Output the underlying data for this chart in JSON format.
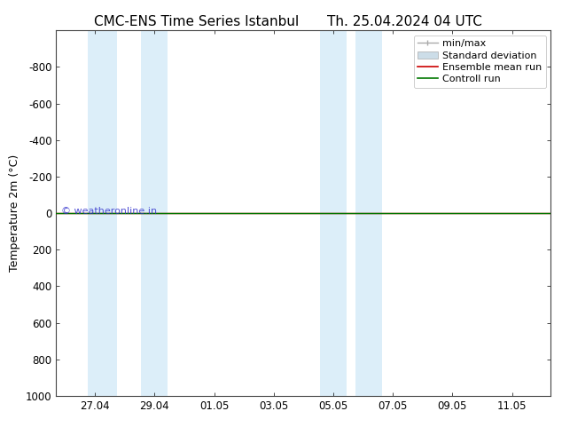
{
  "title_left": "CMC-ENS Time Series Istanbul",
  "title_right": "Th. 25.04.2024 04 UTC",
  "ylabel": "Temperature 2m (°C)",
  "watermark": "© weatheronline.in",
  "ylim_bottom": 1000,
  "ylim_top": -1000,
  "yticks": [
    -800,
    -600,
    -400,
    -200,
    0,
    200,
    400,
    600,
    800,
    1000
  ],
  "xtick_labels": [
    "27.04",
    "29.04",
    "01.05",
    "03.05",
    "05.05",
    "07.05",
    "09.05",
    "11.05"
  ],
  "xtick_positions": [
    0,
    2,
    4,
    6,
    8,
    10,
    12,
    14
  ],
  "xlim_left": -1.3,
  "xlim_right": 15.3,
  "shade_color": "#dceef9",
  "shaded_bands": [
    [
      -0.25,
      0.75
    ],
    [
      1.55,
      2.45
    ],
    [
      7.55,
      8.45
    ],
    [
      8.75,
      9.65
    ]
  ],
  "control_run_color": "#007700",
  "ensemble_mean_color": "#cc0000",
  "minmax_color": "#aaaaaa",
  "stddev_color": "#ccdde8",
  "background_color": "#ffffff",
  "title_fontsize": 11,
  "ylabel_fontsize": 9,
  "tick_fontsize": 8.5,
  "legend_fontsize": 8,
  "watermark_color": "#3333cc",
  "watermark_fontsize": 8
}
